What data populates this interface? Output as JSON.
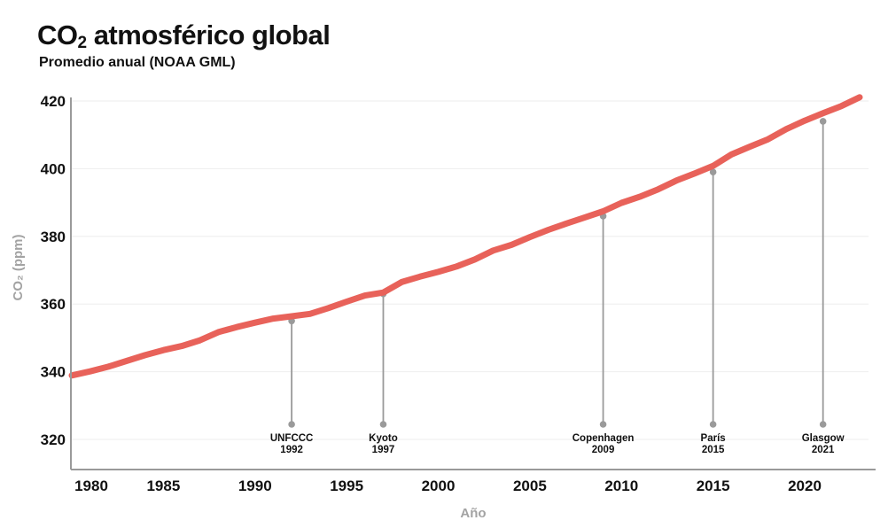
{
  "header": {
    "title_main": "CO",
    "title_sub": "2",
    "title_rest": " atmosférico global",
    "subtitle": "Promedio anual (NOAA GML)"
  },
  "colors": {
    "line": "#e8625a",
    "axis": "#9a9a9a",
    "grid": "#eeeeee",
    "marker": "#9a9a9a"
  },
  "chart_data": {
    "type": "line",
    "title": "CO2 atmosférico global",
    "subtitle": "Promedio anual (NOAA GML)",
    "xlabel": "Año",
    "ylabel": "CO₂ (ppm)",
    "xlim": [
      1980,
      2023
    ],
    "ylim": [
      310,
      422
    ],
    "grid": true,
    "x_ticks": [
      1980,
      1985,
      1990,
      1995,
      2000,
      2005,
      2010,
      2015,
      2020
    ],
    "y_ticks": [
      320,
      340,
      360,
      380,
      400,
      420
    ],
    "x_tick_labels": [
      "1980",
      "1985",
      "1990",
      "1995",
      "2000",
      "2005",
      "2010",
      "2015",
      "2020"
    ],
    "y_tick_labels": [
      "320",
      "340",
      "360",
      "380",
      "400",
      "420"
    ],
    "series": [
      {
        "name": "CO2",
        "x": [
          1980,
          1981,
          1982,
          1983,
          1984,
          1985,
          1986,
          1987,
          1988,
          1989,
          1990,
          1991,
          1992,
          1993,
          1994,
          1995,
          1996,
          1997,
          1998,
          1999,
          2000,
          2001,
          2002,
          2003,
          2004,
          2005,
          2006,
          2007,
          2008,
          2009,
          2010,
          2011,
          2012,
          2013,
          2014,
          2015,
          2016,
          2017,
          2018,
          2019,
          2020,
          2021,
          2022,
          2023
        ],
        "values": [
          338.9,
          340.1,
          341.5,
          343.2,
          344.9,
          346.4,
          347.6,
          349.3,
          351.7,
          353.2,
          354.5,
          355.7,
          356.4,
          357.1,
          358.8,
          360.7,
          362.5,
          363.4,
          366.5,
          368.1,
          369.5,
          371.1,
          373.2,
          375.8,
          377.5,
          379.8,
          381.9,
          383.8,
          385.6,
          387.4,
          389.9,
          391.7,
          393.9,
          396.5,
          398.6,
          400.8,
          404.2,
          406.5,
          408.7,
          411.7,
          414.2,
          416.4,
          418.5,
          421.1
        ]
      }
    ],
    "annotations": [
      {
        "name": "UNFCCC",
        "year": "1992",
        "x": 1992,
        "y": 355
      },
      {
        "name": "Kyoto",
        "year": "1997",
        "x": 1997,
        "y": 363
      },
      {
        "name": "Copenhagen",
        "year": "2009",
        "x": 2009,
        "y": 386
      },
      {
        "name": "París",
        "year": "2015",
        "x": 2015,
        "y": 399
      },
      {
        "name": "Glasgow",
        "year": "2021",
        "x": 2021,
        "y": 414
      }
    ]
  }
}
